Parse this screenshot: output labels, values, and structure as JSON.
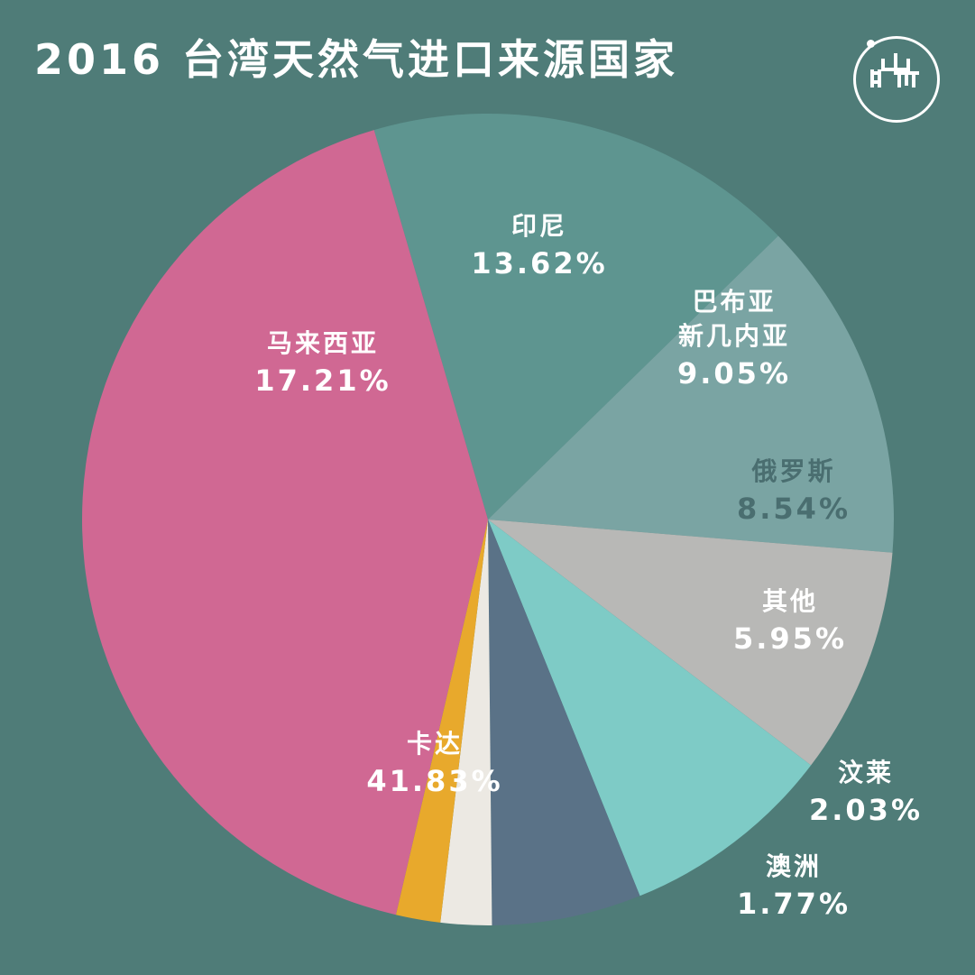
{
  "title": "2016 台湾天然气进口来源国家",
  "chart_data": {
    "type": "pie",
    "title": "2016 台湾天然气进口来源国家",
    "slices": [
      {
        "name": "马来西亚",
        "value": 17.21,
        "label": "17.21%",
        "color": "#5e9590",
        "text_color": "#ffffff"
      },
      {
        "name": "印尼",
        "value": 13.62,
        "label": "13.62%",
        "color": "#7aa4a3",
        "text_color": "#ffffff"
      },
      {
        "name": "巴布亚新几内亚",
        "value": 9.05,
        "label": "9.05%",
        "color": "#b8b8b6",
        "text_color": "#ffffff",
        "name_lines": [
          "巴布亚",
          "新几内亚"
        ]
      },
      {
        "name": "俄罗斯",
        "value": 8.54,
        "label": "8.54%",
        "color": "#7ecbc6",
        "text_color": "#4a6e70"
      },
      {
        "name": "其他",
        "value": 5.95,
        "label": "5.95%",
        "color": "#5a7287",
        "text_color": "#ffffff"
      },
      {
        "name": "",
        "value": 2.03,
        "color": "#ece9e3"
      },
      {
        "name": "",
        "value": 1.77,
        "color": "#e8a92c"
      },
      {
        "name": "卡达",
        "value": 41.83,
        "label": "41.83%",
        "color": "#d06893",
        "text_color": "#ffffff"
      }
    ],
    "outside_labels": [
      {
        "name": "汶莱",
        "label": "2.03%",
        "text_color": "#ffffff"
      },
      {
        "name": "澳洲",
        "label": "1.77%",
        "text_color": "#ffffff"
      }
    ]
  }
}
